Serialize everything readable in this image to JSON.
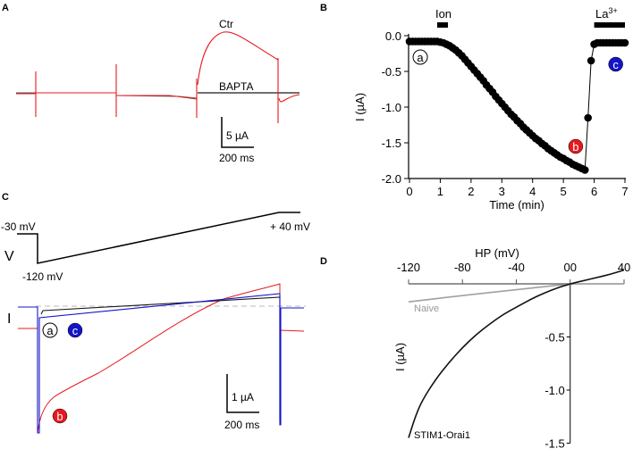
{
  "panels": {
    "A": {
      "label": "A",
      "trace_labels": [
        "Ctr",
        "BAPTA"
      ],
      "scale_y": "5 µA",
      "scale_x": "200 ms",
      "colors": {
        "Ctr": "#e8191e",
        "BAPTA": "#1a1a1a"
      }
    },
    "C": {
      "label": "C",
      "v_label": "V",
      "i_label": "I",
      "v_hold": "-30 mV",
      "v_min": "-120 mV",
      "v_max": "+ 40 mV",
      "scale_y": "1 µA",
      "scale_x": "200 ms",
      "markers": [
        "a",
        "b",
        "c"
      ],
      "colors": {
        "a": "#1a1a1a",
        "b": "#e8191e",
        "c": "#1414c8"
      }
    },
    "B": {
      "label": "B",
      "bar_ion": "Ion",
      "bar_la": "La",
      "bar_la_sup": "3+",
      "markers": [
        "a",
        "b",
        "c"
      ]
    },
    "D": {
      "label": "D"
    }
  },
  "chart_data": [
    {
      "panel": "B",
      "type": "scatter",
      "xlabel": "Time (min)",
      "ylabel": "I (µA)",
      "xlim": [
        0,
        7
      ],
      "ylim": [
        -2.0,
        0.0
      ],
      "xticks": [
        "0",
        "1",
        "2",
        "3",
        "4",
        "5",
        "6",
        "7"
      ],
      "yticks": [
        "0.0",
        "-0.5",
        "-1.0",
        "-1.5",
        "-2.0"
      ],
      "annotations": [
        {
          "text": "Ion",
          "from": 0.9,
          "to": 1.25
        },
        {
          "text": "La3+",
          "from": 6.0,
          "to": 7.0
        }
      ],
      "points": [
        [
          0,
          -0.08
        ],
        [
          0.1,
          -0.08
        ],
        [
          0.2,
          -0.08
        ],
        [
          0.3,
          -0.08
        ],
        [
          0.4,
          -0.08
        ],
        [
          0.5,
          -0.08
        ],
        [
          0.6,
          -0.08
        ],
        [
          0.7,
          -0.08
        ],
        [
          0.8,
          -0.08
        ],
        [
          0.9,
          -0.08
        ],
        [
          1.0,
          -0.09
        ],
        [
          1.1,
          -0.1
        ],
        [
          1.2,
          -0.12
        ],
        [
          1.3,
          -0.14
        ],
        [
          1.4,
          -0.17
        ],
        [
          1.5,
          -0.2
        ],
        [
          1.6,
          -0.24
        ],
        [
          1.7,
          -0.28
        ],
        [
          1.8,
          -0.33
        ],
        [
          1.9,
          -0.38
        ],
        [
          2.0,
          -0.43
        ],
        [
          2.1,
          -0.48
        ],
        [
          2.2,
          -0.53
        ],
        [
          2.3,
          -0.58
        ],
        [
          2.4,
          -0.63
        ],
        [
          2.5,
          -0.69
        ],
        [
          2.6,
          -0.74
        ],
        [
          2.7,
          -0.79
        ],
        [
          2.8,
          -0.85
        ],
        [
          2.9,
          -0.9
        ],
        [
          3.0,
          -0.95
        ],
        [
          3.1,
          -1.0
        ],
        [
          3.2,
          -1.05
        ],
        [
          3.3,
          -1.1
        ],
        [
          3.4,
          -1.14
        ],
        [
          3.5,
          -1.19
        ],
        [
          3.6,
          -1.23
        ],
        [
          3.7,
          -1.28
        ],
        [
          3.8,
          -1.32
        ],
        [
          3.9,
          -1.36
        ],
        [
          4.0,
          -1.4
        ],
        [
          4.1,
          -1.44
        ],
        [
          4.2,
          -1.47
        ],
        [
          4.3,
          -1.51
        ],
        [
          4.4,
          -1.54
        ],
        [
          4.5,
          -1.58
        ],
        [
          4.6,
          -1.61
        ],
        [
          4.7,
          -1.64
        ],
        [
          4.8,
          -1.67
        ],
        [
          4.9,
          -1.7
        ],
        [
          5.0,
          -1.72
        ],
        [
          5.1,
          -1.75
        ],
        [
          5.2,
          -1.77
        ],
        [
          5.3,
          -1.8
        ],
        [
          5.4,
          -1.82
        ],
        [
          5.5,
          -1.84
        ],
        [
          5.6,
          -1.86
        ],
        [
          5.7,
          -1.88
        ],
        [
          5.8,
          -1.15
        ],
        [
          5.9,
          -0.35
        ],
        [
          6.0,
          -0.12
        ],
        [
          6.1,
          -0.1
        ],
        [
          6.2,
          -0.1
        ],
        [
          6.3,
          -0.1
        ],
        [
          6.4,
          -0.1
        ],
        [
          6.5,
          -0.1
        ],
        [
          6.6,
          -0.1
        ],
        [
          6.7,
          -0.1
        ],
        [
          6.8,
          -0.1
        ],
        [
          6.9,
          -0.1
        ],
        [
          7.0,
          -0.1
        ]
      ],
      "labeled_points": [
        {
          "label": "a",
          "x": 0.35,
          "y": -0.3,
          "color": "#ffffff"
        },
        {
          "label": "b",
          "x": 5.4,
          "y": -1.55,
          "color": "#e8191e"
        },
        {
          "label": "c",
          "x": 6.7,
          "y": -0.4,
          "color": "#1414c8"
        }
      ]
    },
    {
      "panel": "D",
      "type": "line",
      "xlabel": "HP (mV)",
      "ylabel": "I (µA)",
      "xlim": [
        -120,
        40
      ],
      "ylim": [
        -1.5,
        0.15
      ],
      "xticks": [
        "-120",
        "-80",
        "-40",
        "00",
        "40"
      ],
      "yticks": [
        "-0.5",
        "-1.0",
        "-1.5"
      ],
      "series": [
        {
          "name": "Naive",
          "color": "#a0a0a0",
          "x": [
            -120,
            -80,
            -40,
            0,
            20,
            40
          ],
          "y": [
            -0.17,
            -0.11,
            -0.055,
            0,
            0.0,
            0.0
          ]
        },
        {
          "name": "STIM1-Orai1",
          "color": "#111111",
          "x": [
            -120,
            -115,
            -110,
            -100,
            -90,
            -80,
            -70,
            -60,
            -50,
            -40,
            -30,
            -20,
            -10,
            0,
            10,
            20,
            30,
            40
          ],
          "y": [
            -1.45,
            -1.25,
            -1.1,
            -0.9,
            -0.74,
            -0.6,
            -0.48,
            -0.38,
            -0.29,
            -0.22,
            -0.15,
            -0.09,
            -0.04,
            0,
            0.03,
            0.06,
            0.09,
            0.13
          ]
        }
      ]
    }
  ]
}
